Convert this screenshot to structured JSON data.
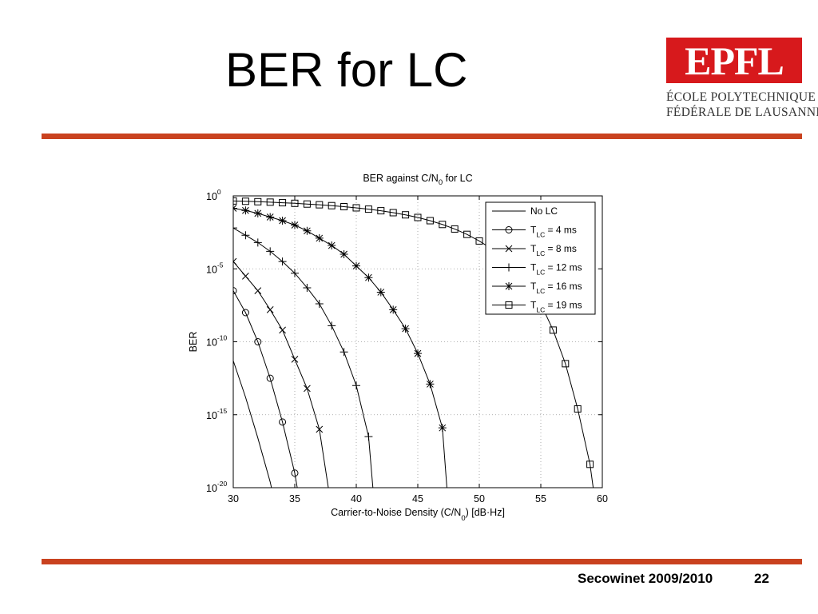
{
  "slide": {
    "title": "BER for LC",
    "footer_text": "Secowinet 2009/2010",
    "page_number": "22",
    "accent_color": "#c9421f"
  },
  "logo": {
    "mark": "EPFL",
    "line1": "ÉCOLE POLYTECHNIQUE",
    "line2": "FÉDÉRALE DE LAUSANNE",
    "color": "#d7191c"
  },
  "chart_data": {
    "type": "line",
    "title": "BER against C/N",
    "title_sub": "0",
    "title_suffix": " for LC",
    "xlabel": "Carrier-to-Noise Density (C/N",
    "xlabel_sub": "0",
    "xlabel_suffix": ") [dB·Hz]",
    "ylabel": "BER",
    "y_scale": "log",
    "xlim": [
      30,
      60
    ],
    "ylim_exponent": [
      -20,
      0
    ],
    "x_ticks": [
      30,
      35,
      40,
      45,
      50,
      55,
      60
    ],
    "y_tick_exponents": [
      0,
      -5,
      -10,
      -15,
      -20
    ],
    "y_tick_base": "10",
    "grid": true,
    "legend_position": "top-right",
    "series": [
      {
        "name_main": "No LC",
        "name_sub": "",
        "name_suffix": "",
        "marker": "none",
        "x": [
          30,
          31,
          32,
          33,
          33.5
        ],
        "log10_y": [
          -11.3,
          -13.8,
          -16.6,
          -19.6,
          -21.5
        ]
      },
      {
        "name_main": "T",
        "name_sub": "LC",
        "name_suffix": " =  4 ms",
        "marker": "circle",
        "x": [
          30,
          31,
          32,
          33,
          34,
          35,
          35.5
        ],
        "log10_y": [
          -6.5,
          -8.0,
          -10.0,
          -12.5,
          -15.5,
          -19.0,
          -21.5
        ]
      },
      {
        "name_main": "T",
        "name_sub": "LC",
        "name_suffix": " =  8 ms",
        "marker": "x",
        "x": [
          30,
          31,
          32,
          33,
          34,
          35,
          36,
          37,
          38
        ],
        "log10_y": [
          -4.5,
          -5.5,
          -6.5,
          -7.8,
          -9.2,
          -11.2,
          -13.2,
          -16.0,
          -21.5
        ]
      },
      {
        "name_main": "T",
        "name_sub": "LC",
        "name_suffix": " = 12 ms",
        "marker": "plus",
        "x": [
          30,
          31,
          32,
          33,
          34,
          35,
          36,
          37,
          38,
          39,
          40,
          41,
          41.5
        ],
        "log10_y": [
          -2.2,
          -2.7,
          -3.2,
          -3.8,
          -4.5,
          -5.3,
          -6.3,
          -7.4,
          -8.9,
          -10.7,
          -13.0,
          -16.5,
          -21.5
        ]
      },
      {
        "name_main": "T",
        "name_sub": "LC",
        "name_suffix": " = 16 ms",
        "marker": "asterisk",
        "x": [
          30,
          31,
          32,
          33,
          34,
          35,
          36,
          37,
          38,
          39,
          40,
          41,
          42,
          43,
          44,
          45,
          46,
          47,
          47.5
        ],
        "log10_y": [
          -0.85,
          -1.0,
          -1.2,
          -1.45,
          -1.7,
          -2.0,
          -2.4,
          -2.9,
          -3.4,
          -4.0,
          -4.8,
          -5.6,
          -6.6,
          -7.8,
          -9.1,
          -10.8,
          -12.9,
          -15.9,
          -21.5
        ]
      },
      {
        "name_main": "T",
        "name_sub": "LC",
        "name_suffix": " = 19 ms",
        "marker": "square",
        "x": [
          30,
          31,
          32,
          33,
          34,
          35,
          36,
          37,
          38,
          39,
          40,
          41,
          42,
          43,
          44,
          45,
          46,
          47,
          48,
          49,
          50,
          51,
          52,
          53,
          54,
          55,
          56,
          57,
          58,
          59,
          59.5
        ],
        "log10_y": [
          -0.35,
          -0.37,
          -0.4,
          -0.43,
          -0.47,
          -0.51,
          -0.56,
          -0.61,
          -0.67,
          -0.74,
          -0.82,
          -0.91,
          -1.02,
          -1.15,
          -1.3,
          -1.48,
          -1.7,
          -1.96,
          -2.27,
          -2.64,
          -3.09,
          -3.63,
          -4.28,
          -5.1,
          -6.1,
          -7.4,
          -9.2,
          -11.5,
          -14.6,
          -18.4,
          -21.5
        ]
      }
    ]
  }
}
